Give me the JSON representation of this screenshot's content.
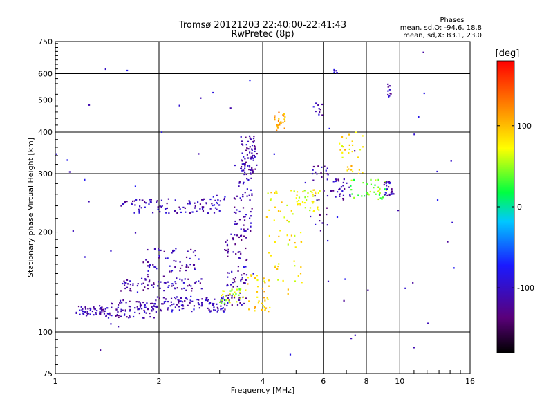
{
  "chart_data": {
    "type": "scatter",
    "title": "Tromsø 20121203 22:40:00-22:41:43",
    "subtitle": "RwPretec (8p)",
    "xlabel": "Frequency [MHz]",
    "ylabel": "Stationary phase Virtual Height [km]",
    "x_scale": "log",
    "y_scale": "log",
    "xlim": [
      1,
      16
    ],
    "ylim": [
      75,
      750
    ],
    "x_ticks": [
      1,
      2,
      4,
      6,
      8,
      10,
      16
    ],
    "y_ticks": [
      75,
      100,
      200,
      300,
      400,
      500,
      600,
      750
    ],
    "grid": true,
    "stats_title": "Phases",
    "stats_lines": [
      "mean, sd,O: -94.6, 18.8",
      "mean, sd,X: 83.1, 23.0"
    ],
    "colorbar": {
      "label": "[deg]",
      "range": [
        -180,
        180
      ],
      "ticks": [
        100,
        0,
        -100
      ],
      "colormap": "rainbow (black-purple-blue-cyan-green-yellow-red)"
    },
    "clusters": [
      {
        "x": [
          1.15,
          1.4
        ],
        "y": [
          112,
          120
        ],
        "phase": -110,
        "count": 55
      },
      {
        "x": [
          1.4,
          1.95
        ],
        "y": [
          110,
          125
        ],
        "phase": -112,
        "count": 90
      },
      {
        "x": [
          1.95,
          3.2
        ],
        "y": [
          115,
          128
        ],
        "phase": -105,
        "count": 110
      },
      {
        "x": [
          1.55,
          2.7
        ],
        "y": [
          133,
          145
        ],
        "phase": -112,
        "count": 70
      },
      {
        "x": [
          1.8,
          2.6
        ],
        "y": [
          145,
          180
        ],
        "phase": -110,
        "count": 60
      },
      {
        "x": [
          1.55,
          3.0
        ],
        "y": [
          228,
          252
        ],
        "phase": -108,
        "count": 90
      },
      {
        "x": [
          2.7,
          3.2
        ],
        "y": [
          235,
          258
        ],
        "phase": -100,
        "count": 15
      },
      {
        "x": [
          3.1,
          3.6
        ],
        "y": [
          120,
          200
        ],
        "phase": -115,
        "count": 80
      },
      {
        "x": [
          3.3,
          3.75
        ],
        "y": [
          200,
          320
        ],
        "phase": -110,
        "count": 60
      },
      {
        "x": [
          3.45,
          3.85
        ],
        "y": [
          300,
          390
        ],
        "phase": -112,
        "count": 70
      },
      {
        "x": [
          3.0,
          3.6
        ],
        "y": [
          122,
          135
        ],
        "phase": 55,
        "count": 30
      },
      {
        "x": [
          3.6,
          4.2
        ],
        "y": [
          115,
          150
        ],
        "phase": 90,
        "count": 40
      },
      {
        "x": [
          4.1,
          5.2
        ],
        "y": [
          130,
          270
        ],
        "phase": 80,
        "count": 60
      },
      {
        "x": [
          4.3,
          4.65
        ],
        "y": [
          400,
          460
        ],
        "phase": 115,
        "count": 25
      },
      {
        "x": [
          5.0,
          5.9
        ],
        "y": [
          230,
          270
        ],
        "phase": 70,
        "count": 35
      },
      {
        "x": [
          5.5,
          6.2
        ],
        "y": [
          200,
          320
        ],
        "phase": -110,
        "count": 30
      },
      {
        "x": [
          6.3,
          7.2
        ],
        "y": [
          250,
          290
        ],
        "phase": -110,
        "count": 30
      },
      {
        "x": [
          6.6,
          8.0
        ],
        "y": [
          300,
          400
        ],
        "phase": 85,
        "count": 30
      },
      {
        "x": [
          7.2,
          9.2
        ],
        "y": [
          250,
          290
        ],
        "phase": 40,
        "count": 40
      },
      {
        "x": [
          9.0,
          9.6
        ],
        "y": [
          255,
          285
        ],
        "phase": -110,
        "count": 25
      },
      {
        "x": [
          9.2,
          9.45
        ],
        "y": [
          505,
          560
        ],
        "phase": -110,
        "count": 10
      },
      {
        "x": [
          6.4,
          6.7
        ],
        "y": [
          600,
          635
        ],
        "phase": -100,
        "count": 6
      },
      {
        "x": [
          5.6,
          6.2
        ],
        "y": [
          450,
          490
        ],
        "phase": -110,
        "count": 10
      },
      {
        "x": [
          1.0,
          16.0
        ],
        "y": [
          80,
          700
        ],
        "phase": -100,
        "count": 60
      }
    ]
  }
}
